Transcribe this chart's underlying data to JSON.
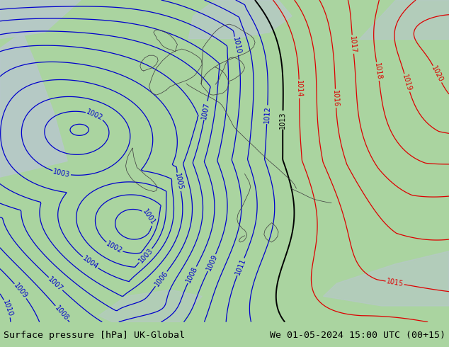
{
  "title_left": "Surface pressure [hPa] UK-Global",
  "title_right": "We 01-05-2024 15:00 UTC (00+15)",
  "title_fontsize": 9.5,
  "title_color": "#000000",
  "bg_color": "#aad4a0",
  "sea_color": "#b8c8cc",
  "blue_contour_color": "#0000cc",
  "black_contour_color": "#000000",
  "red_contour_color": "#dd0000",
  "contour_linewidth": 0.9,
  "label_fontsize": 7,
  "bottom_bar_color": "#d8d8d8"
}
